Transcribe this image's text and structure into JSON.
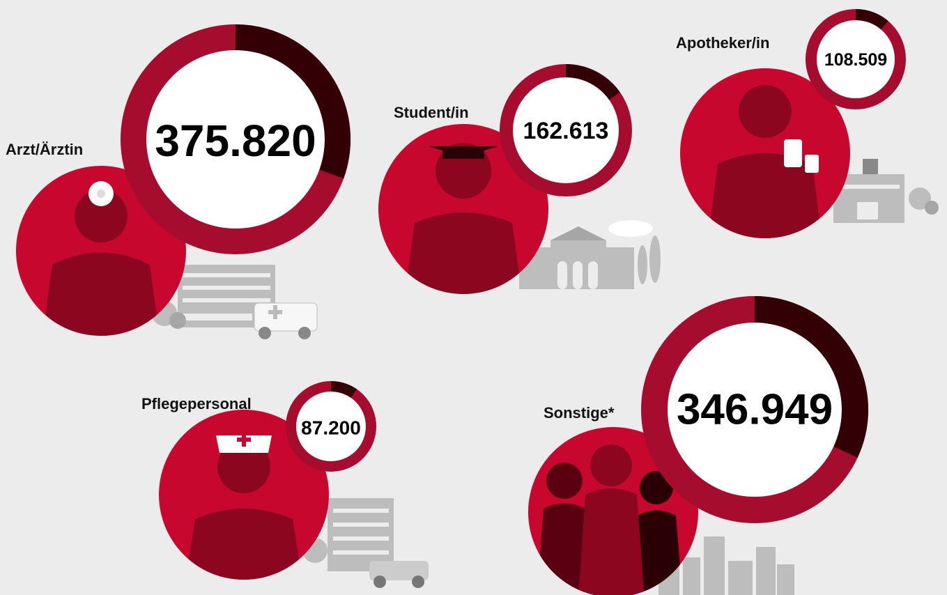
{
  "groups": [
    {
      "label": "Arzt/Ärztin",
      "value": "375.820"
    },
    {
      "label": "Student/in",
      "value": "162.613"
    },
    {
      "label": "Apotheker/in",
      "value": "108.509"
    },
    {
      "label": "Pflegepersonal",
      "value": "87.200"
    },
    {
      "label": "Sonstige*",
      "value": "346.949"
    }
  ]
}
